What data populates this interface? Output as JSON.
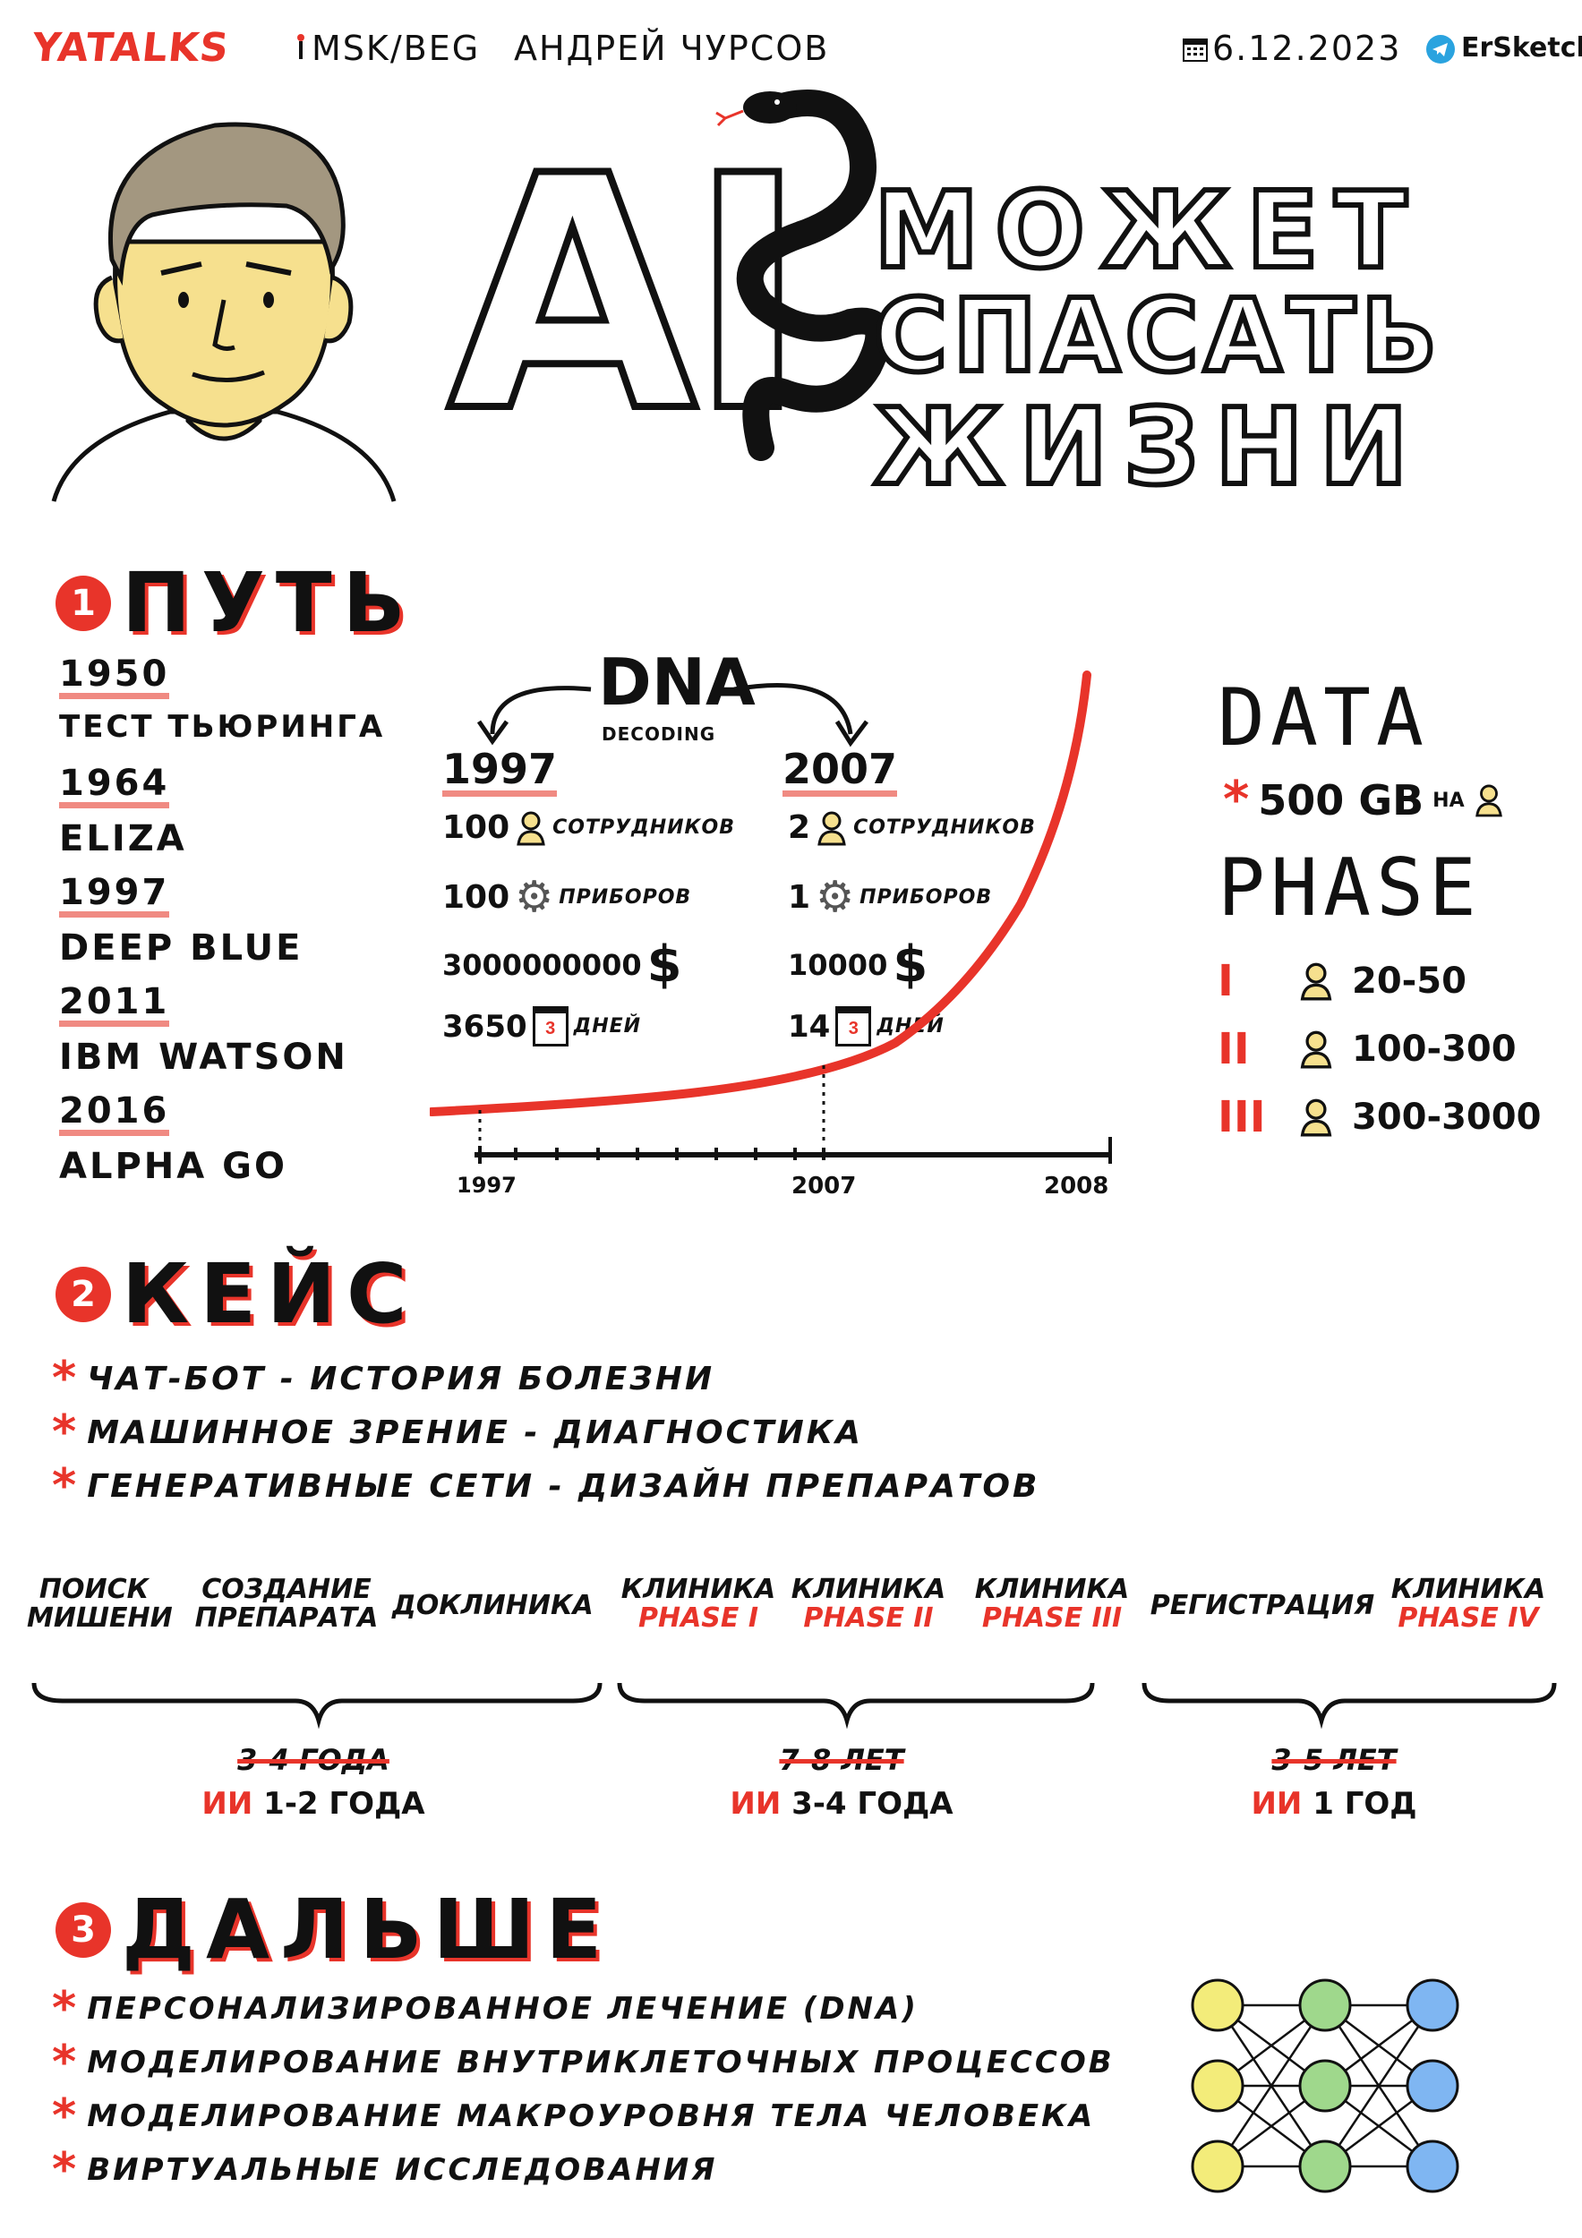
{
  "header": {
    "brand": "YATALKS",
    "location": "MSK/BEG",
    "author": "АНДРЕЙ ЧУРСОВ",
    "date": "6.12.2023",
    "credit": "ErSketch"
  },
  "title": {
    "ai": "AI",
    "line1": "МОЖЕТ",
    "line2": "СПАСАТЬ",
    "line3": "ЖИЗНИ"
  },
  "sections": {
    "s1": {
      "num": "1",
      "title": "ПУТЬ"
    },
    "s2": {
      "num": "2",
      "title": "КЕЙС"
    },
    "s3": {
      "num": "3",
      "title": "ДАЛЬШЕ"
    }
  },
  "timeline": [
    {
      "year": "1950",
      "event": "ТЕСТ ТЬЮРИНГА"
    },
    {
      "year": "1964",
      "event": "ELIZA"
    },
    {
      "year": "1997",
      "event": "DEEP BLUE"
    },
    {
      "year": "2011",
      "event": "IBM WATSON"
    },
    {
      "year": "2016",
      "event": "ALPHA GO"
    }
  ],
  "dna": {
    "title": "DNA",
    "subtitle": "DECODING",
    "left": {
      "year": "1997",
      "staff": "100",
      "staff_label": "СОТРУДНИКОВ",
      "devices": "100",
      "devices_label": "ПРИБОРОВ",
      "money": "3000000000",
      "days": "3650",
      "days_label": "ДНЕЙ"
    },
    "right": {
      "year": "2007",
      "staff": "2",
      "staff_label": "СОТРУДНИКОВ",
      "devices": "1",
      "devices_label": "ПРИБОРОВ",
      "money": "10000",
      "days": "14",
      "days_label": "ДНЕЙ"
    },
    "currency": "$",
    "calendar_icon_num": "3",
    "axis": {
      "start": "1997",
      "mid": "2007",
      "end": "2008"
    }
  },
  "data_panel": {
    "data_title": "DATA",
    "data_value": "500 GB",
    "data_per": "НА",
    "phase_title": "PHASE",
    "phases": [
      {
        "roman": "I",
        "range": "20-50"
      },
      {
        "roman": "II",
        "range": "100-300"
      },
      {
        "roman": "III",
        "range": "300-3000"
      }
    ]
  },
  "cases": [
    "ЧАТ-БОТ - ИСТОРИЯ БОЛЕЗНИ",
    "МАШИННОЕ ЗРЕНИЕ - ДИАГНОСТИКА",
    "ГЕНЕРАТИВНЫЕ СЕТИ - ДИЗАЙН ПРЕПАРАТОВ"
  ],
  "pipeline": {
    "stages": [
      {
        "line1": "ПОИСК",
        "line2": "МИШЕНИ"
      },
      {
        "line1": "СОЗДАНИЕ",
        "line2": "ПРЕПАРАТА"
      },
      {
        "line1": "ДОКЛИНИКА",
        "line2": ""
      },
      {
        "line1": "КЛИНИКА",
        "line2": "PHASE I"
      },
      {
        "line1": "КЛИНИКА",
        "line2": "PHASE II"
      },
      {
        "line1": "КЛИНИКА",
        "line2": "PHASE III"
      },
      {
        "line1": "РЕГИСТРАЦИЯ",
        "line2": ""
      },
      {
        "line1": "КЛИНИКА",
        "line2": "PHASE IV"
      }
    ],
    "groups": [
      {
        "old": "3-4 ГОДА",
        "ai": "ИИ",
        "new": "1-2 ГОДА"
      },
      {
        "old": "7-8 ЛЕТ",
        "ai": "ИИ",
        "new": "3-4 ГОДА"
      },
      {
        "old": "3-5 ЛЕТ",
        "ai": "ИИ",
        "new": "1 ГОД"
      }
    ]
  },
  "future": [
    "ПЕРСОНАЛИЗИРОВАННОЕ ЛЕЧЕНИЕ (DNA)",
    "МОДЕЛИРОВАНИЕ ВНУТРИКЛЕТОЧНЫХ ПРОЦЕССОВ",
    "МОДЕЛИРОВАНИЕ МАКРОУРОВНЯ ТЕЛА ЧЕЛОВЕКА",
    "ВИРТУАЛЬНЫЕ ИССЛЕДОВАНИЯ"
  ],
  "colors": {
    "accent": "#e8342a",
    "skin": "#f6e08e",
    "nn_yellow": "#f3ec7a",
    "nn_green": "#9fd88c",
    "nn_blue": "#7fb6f2"
  }
}
